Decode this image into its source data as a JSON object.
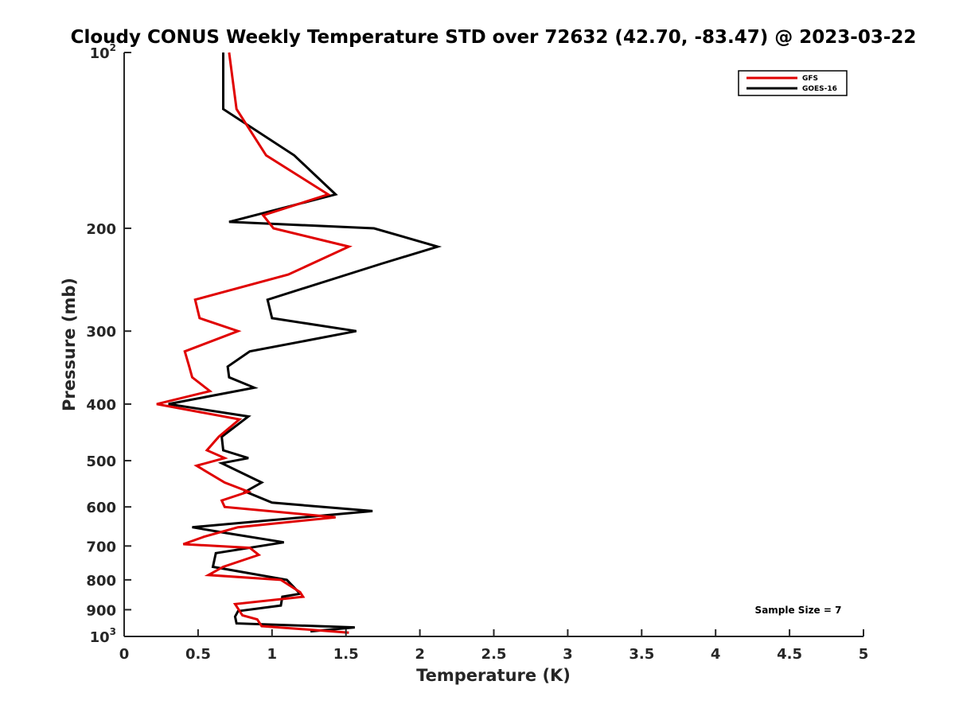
{
  "chart_data": {
    "type": "line",
    "title": "Cloudy CONUS Weekly Temperature STD over 72632 (42.70, -83.47) @ 2023-03-22",
    "xlabel": "Temperature (K)",
    "ylabel": "Pressure (mb)",
    "xlim": [
      0,
      5
    ],
    "ylim": [
      100,
      1000
    ],
    "y_scale": "log",
    "y_reversed": true,
    "x_ticks": [
      0,
      0.5,
      1,
      1.5,
      2,
      2.5,
      3,
      3.5,
      4,
      4.5,
      5
    ],
    "x_tick_labels": [
      "0",
      "0.5",
      "1",
      "1.5",
      "2",
      "2.5",
      "3",
      "3.5",
      "4",
      "4.5",
      "5"
    ],
    "y_ticks": [
      {
        "value": 100,
        "label": "10",
        "sup": "2"
      },
      {
        "value": 200,
        "label": "200",
        "sup": ""
      },
      {
        "value": 300,
        "label": "300",
        "sup": ""
      },
      {
        "value": 400,
        "label": "400",
        "sup": ""
      },
      {
        "value": 500,
        "label": "500",
        "sup": ""
      },
      {
        "value": 600,
        "label": "600",
        "sup": ""
      },
      {
        "value": 700,
        "label": "700",
        "sup": ""
      },
      {
        "value": 800,
        "label": "800",
        "sup": ""
      },
      {
        "value": 900,
        "label": "900",
        "sup": ""
      },
      {
        "value": 1000,
        "label": "10",
        "sup": "3"
      }
    ],
    "grid": false,
    "legend_position": "top-right",
    "annotation": "Sample Size = 7",
    "series": [
      {
        "name": "GFS",
        "color": "#e00000",
        "points": [
          [
            0.71,
            100
          ],
          [
            0.76,
            125
          ],
          [
            0.96,
            150
          ],
          [
            1.38,
            175
          ],
          [
            0.94,
            190
          ],
          [
            1.01,
            200
          ],
          [
            1.52,
            215
          ],
          [
            1.11,
            240
          ],
          [
            0.48,
            265
          ],
          [
            0.51,
            285
          ],
          [
            0.77,
            300
          ],
          [
            0.41,
            325
          ],
          [
            0.44,
            345
          ],
          [
            0.46,
            360
          ],
          [
            0.58,
            380
          ],
          [
            0.22,
            400
          ],
          [
            0.78,
            425
          ],
          [
            0.64,
            455
          ],
          [
            0.56,
            480
          ],
          [
            0.68,
            495
          ],
          [
            0.49,
            510
          ],
          [
            0.68,
            545
          ],
          [
            0.84,
            565
          ],
          [
            0.66,
            585
          ],
          [
            0.68,
            600
          ],
          [
            1.43,
            625
          ],
          [
            0.77,
            650
          ],
          [
            0.54,
            675
          ],
          [
            0.4,
            695
          ],
          [
            0.85,
            705
          ],
          [
            0.91,
            725
          ],
          [
            0.67,
            760
          ],
          [
            0.57,
            785
          ],
          [
            1.06,
            800
          ],
          [
            1.19,
            840
          ],
          [
            1.21,
            855
          ],
          [
            0.75,
            880
          ],
          [
            0.8,
            920
          ],
          [
            0.9,
            935
          ],
          [
            0.93,
            960
          ],
          [
            1.52,
            985
          ]
        ]
      },
      {
        "name": "GOES-16",
        "color": "#000000",
        "points": [
          [
            0.67,
            100
          ],
          [
            0.67,
            125
          ],
          [
            1.15,
            150
          ],
          [
            1.43,
            175
          ],
          [
            0.71,
            195
          ],
          [
            1.69,
            200
          ],
          [
            2.12,
            215
          ],
          [
            1.74,
            230
          ],
          [
            0.97,
            265
          ],
          [
            1.0,
            285
          ],
          [
            1.57,
            300
          ],
          [
            0.85,
            325
          ],
          [
            0.7,
            345
          ],
          [
            0.71,
            360
          ],
          [
            0.88,
            375
          ],
          [
            0.3,
            400
          ],
          [
            0.84,
            420
          ],
          [
            0.66,
            455
          ],
          [
            0.67,
            480
          ],
          [
            0.84,
            495
          ],
          [
            0.66,
            505
          ],
          [
            0.93,
            545
          ],
          [
            0.82,
            565
          ],
          [
            1.0,
            590
          ],
          [
            1.68,
            610
          ],
          [
            0.46,
            650
          ],
          [
            0.69,
            665
          ],
          [
            1.08,
            690
          ],
          [
            0.62,
            720
          ],
          [
            0.6,
            760
          ],
          [
            1.1,
            800
          ],
          [
            1.19,
            845
          ],
          [
            1.07,
            855
          ],
          [
            1.06,
            885
          ],
          [
            0.77,
            905
          ],
          [
            0.75,
            925
          ],
          [
            0.76,
            950
          ],
          [
            1.56,
            965
          ],
          [
            1.26,
            980
          ]
        ]
      }
    ]
  }
}
